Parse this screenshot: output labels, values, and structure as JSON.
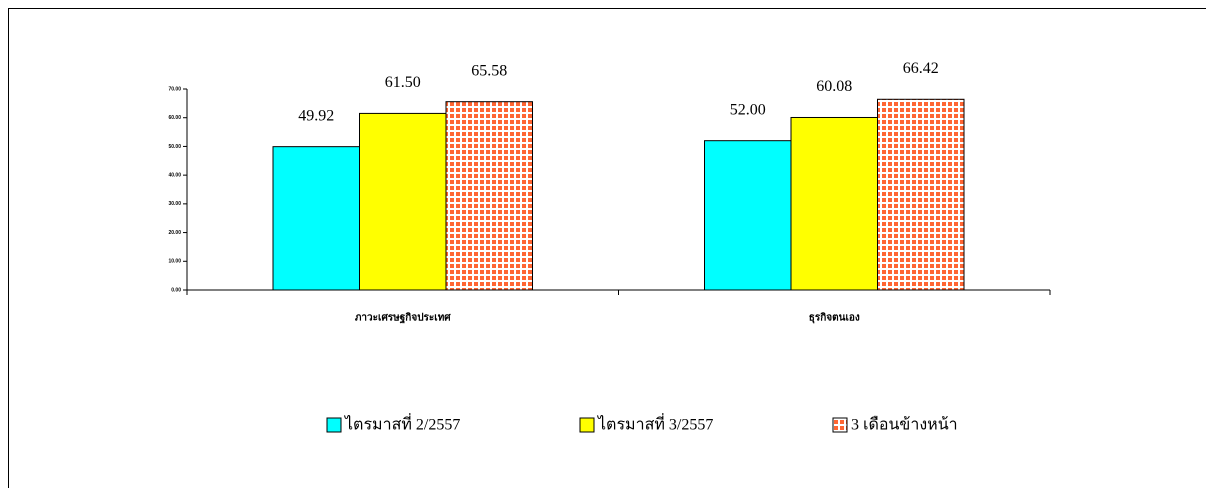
{
  "chart_data": {
    "type": "bar",
    "categories": [
      "ภาวะเศรษฐกิจประเทศ",
      "ธุรกิจตนเอง"
    ],
    "series": [
      {
        "name": "ไตรมาสที่ 2/2557",
        "color": "#00ffff",
        "values": [
          49.92,
          52.0
        ],
        "value_labels": [
          "49.92",
          "52.00"
        ]
      },
      {
        "name": "ไตรมาสที่ 3/2557",
        "color": "#ffff00",
        "values": [
          61.5,
          60.08
        ],
        "value_labels": [
          "61.50",
          "60.08"
        ]
      },
      {
        "name": "3 เดือนข้างหน้า",
        "color": "#ff6633",
        "hatch": "grid",
        "values": [
          65.58,
          66.42
        ],
        "value_labels": [
          "65.58",
          "66.42"
        ]
      }
    ],
    "ylim": [
      0,
      70
    ],
    "yticks": [
      {
        "value": 0,
        "label": "0.00"
      },
      {
        "value": 10,
        "label": "10.00"
      },
      {
        "value": 20,
        "label": "20.00"
      },
      {
        "value": 30,
        "label": "30.00"
      },
      {
        "value": 40,
        "label": "40.00"
      },
      {
        "value": 50,
        "label": "50.00"
      },
      {
        "value": 60,
        "label": "60.00"
      },
      {
        "value": 70,
        "label": "70.00"
      }
    ],
    "grid": false
  }
}
